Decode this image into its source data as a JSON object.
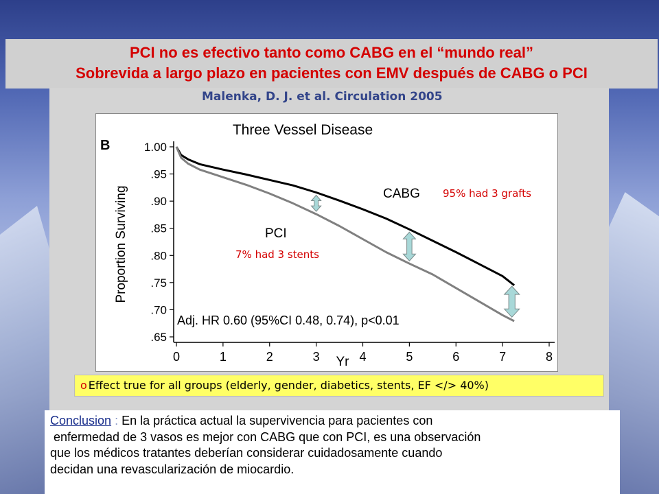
{
  "header": {
    "line1": "PCI no es efectivo tanto como CABG en el “mundo real”",
    "line2": "Sobrevida a largo plazo en pacientes con EMV después de CABG o PCI"
  },
  "citation": "Malenka, D. J. et al. Circulation 2005",
  "chart_data": {
    "type": "line",
    "panel_label": "B",
    "title": "Three Vessel Disease",
    "xlabel": "Yr",
    "ylabel": "Proportion Surviving",
    "xlim": [
      0,
      8
    ],
    "ylim": [
      0.65,
      1.0
    ],
    "x_ticks": [
      0,
      1,
      2,
      3,
      4,
      5,
      6,
      7,
      8
    ],
    "x_tick_labels": [
      "0",
      "1",
      "2",
      "3",
      "4",
      "5",
      "6",
      "7",
      "8"
    ],
    "y_ticks": [
      1.0,
      0.95,
      0.9,
      0.85,
      0.8,
      0.75,
      0.7,
      0.65
    ],
    "y_tick_labels": [
      "1.00",
      ".95",
      ".90",
      ".85",
      ".80",
      ".75",
      ".70",
      ".65"
    ],
    "series": [
      {
        "name": "CABG",
        "color": "#000000",
        "x": [
          0,
          0.1,
          0.25,
          0.5,
          1,
          1.5,
          2,
          2.5,
          3,
          3.5,
          4,
          4.5,
          5,
          5.5,
          6,
          6.5,
          7,
          7.25
        ],
        "y": [
          1.0,
          0.985,
          0.977,
          0.968,
          0.958,
          0.949,
          0.939,
          0.929,
          0.916,
          0.901,
          0.885,
          0.868,
          0.848,
          0.827,
          0.806,
          0.784,
          0.762,
          0.745
        ]
      },
      {
        "name": "PCI",
        "color": "#808080",
        "x": [
          0,
          0.1,
          0.25,
          0.5,
          1,
          1.5,
          2,
          2.5,
          3,
          3.5,
          4,
          4.5,
          5,
          5.5,
          6,
          6.5,
          7,
          7.25
        ],
        "y": [
          1.0,
          0.98,
          0.969,
          0.958,
          0.944,
          0.93,
          0.914,
          0.896,
          0.876,
          0.854,
          0.83,
          0.806,
          0.785,
          0.765,
          0.74,
          0.715,
          0.69,
          0.679
        ]
      }
    ],
    "annotations": {
      "cabg_note": "95% had 3 grafts",
      "pci_note": "7% had 3 stents",
      "hr_text": "Adj. HR 0.60 (95%CI 0.48, 0.74), p<0.01"
    },
    "arrows_at_x": [
      3,
      5,
      7.2
    ],
    "arrow_color": "#a8d8d8"
  },
  "effect_note": {
    "bullet": "o",
    "text": "Effect true for  all groups (elderly, gender, diabetics,  stents, EF </> 40%)"
  },
  "conclusion": {
    "heading": "Conclusion",
    "colon": " : ",
    "body_line1": "En la práctica actual la supervivencia para pacientes con",
    "body_line2": " enfermedad de 3 vasos es mejor con CABG que con PCI, es una observación",
    "body_line3": "que los médicos tratantes deberían considerar cuidadosamente cuando",
    "body_line4": "decidan una revascularización de miocardio."
  }
}
